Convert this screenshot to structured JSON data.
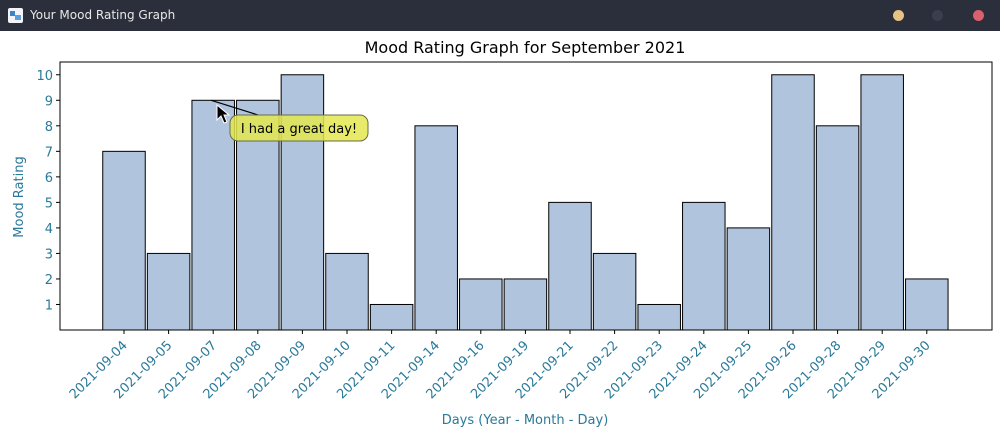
{
  "window": {
    "title": "Your Mood Rating Graph",
    "icon": "app-chart-icon",
    "buttons": [
      {
        "name": "minimize",
        "color": "#e6c384"
      },
      {
        "name": "maximize",
        "color": "#3a3f4d"
      },
      {
        "name": "close",
        "color": "#d9606c"
      }
    ]
  },
  "chart_data": {
    "type": "bar",
    "title": "Mood Rating Graph for September 2021",
    "xlabel": "Days (Year - Month - Day)",
    "ylabel": "Mood Rating",
    "ylim": [
      0,
      10.5
    ],
    "yticks": [
      1,
      2,
      3,
      4,
      5,
      6,
      7,
      8,
      9,
      10
    ],
    "categories": [
      "2021-09-04",
      "2021-09-05",
      "2021-09-07",
      "2021-09-08",
      "2021-09-09",
      "2021-09-10",
      "2021-09-11",
      "2021-09-14",
      "2021-09-16",
      "2021-09-19",
      "2021-09-21",
      "2021-09-22",
      "2021-09-23",
      "2021-09-24",
      "2021-09-25",
      "2021-09-26",
      "2021-09-28",
      "2021-09-29",
      "2021-09-30"
    ],
    "values": [
      7,
      3,
      9,
      9,
      10,
      3,
      1,
      8,
      2,
      2,
      5,
      3,
      1,
      5,
      4,
      10,
      8,
      10,
      2
    ],
    "bar_color": "#b0c4de",
    "bar_edge_color": "#000000",
    "axis_label_color": "#2a7a9a",
    "grid": false,
    "legend": "none",
    "annotation": {
      "text": "I had a great day!",
      "category": "2021-09-07",
      "value": 9,
      "box_color": "#e3e84f"
    }
  }
}
